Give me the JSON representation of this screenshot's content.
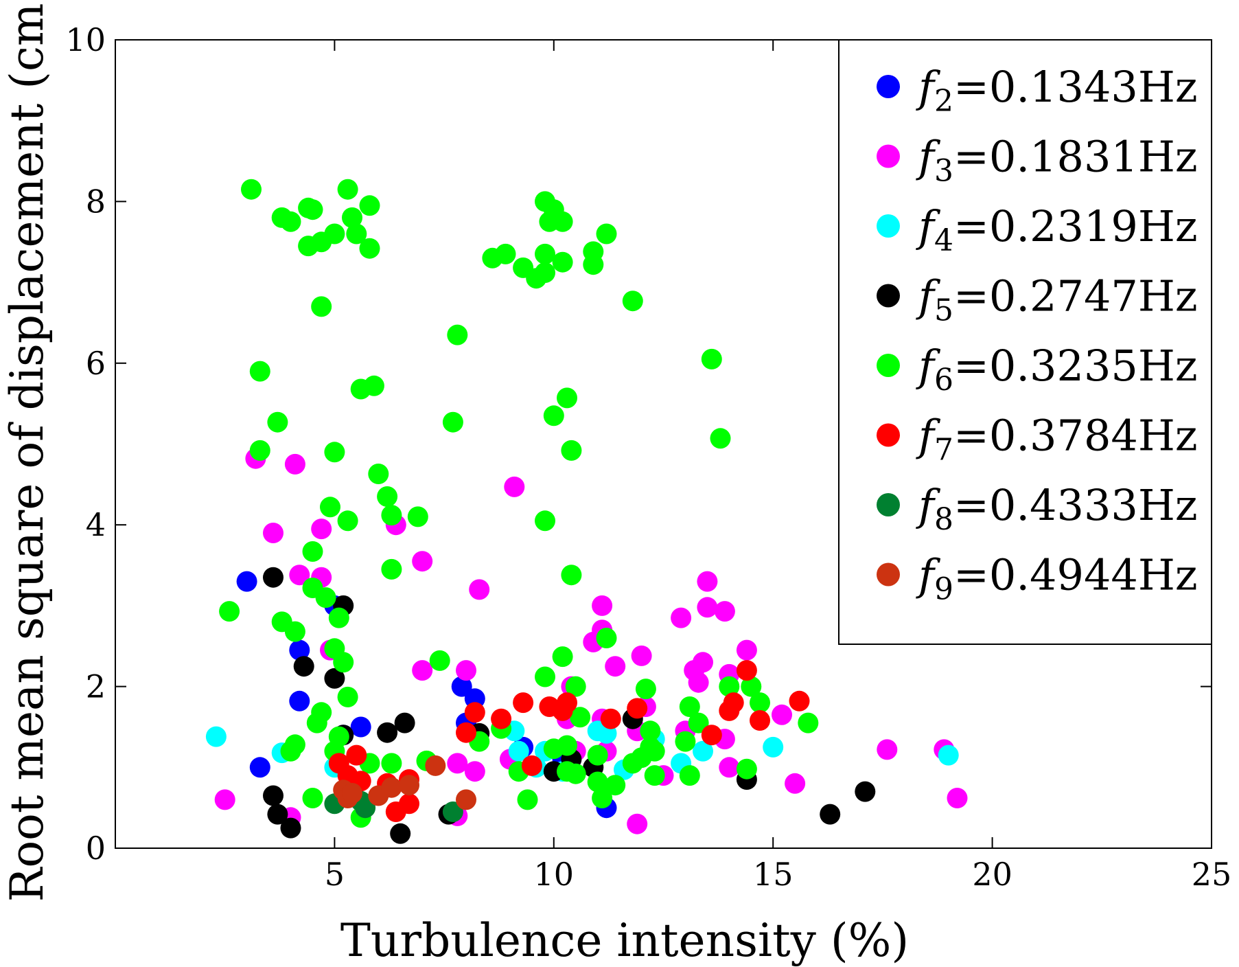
{
  "chart_data": {
    "type": "scatter",
    "xlabel": "Turbulence intensity (%)",
    "ylabel": "Root mean square of displacement (cm)",
    "xlim": [
      0,
      25
    ],
    "ylim": [
      0,
      10
    ],
    "xticks": [
      5,
      10,
      15,
      20,
      25
    ],
    "yticks": [
      0,
      2,
      4,
      6,
      8,
      10
    ],
    "grid": false,
    "legend_position": "top-right",
    "series": [
      {
        "name": "f2=0.1343Hz",
        "symbol": "f",
        "subscript": "2",
        "label_rest": "=0.1343Hz",
        "color": "#0000ff",
        "points": [
          [
            3.0,
            3.3
          ],
          [
            3.3,
            1.0
          ],
          [
            4.2,
            2.45
          ],
          [
            4.2,
            1.82
          ],
          [
            5.0,
            3.0
          ],
          [
            5.6,
            1.5
          ],
          [
            7.9,
            2.0
          ],
          [
            8.0,
            1.55
          ],
          [
            8.2,
            1.85
          ],
          [
            9.3,
            1.25
          ],
          [
            10.2,
            1.1
          ],
          [
            11.2,
            0.5
          ],
          [
            5.2,
            1.4
          ]
        ]
      },
      {
        "name": "f3=0.1831Hz",
        "symbol": "f",
        "subscript": "3",
        "label_rest": "=0.1831Hz",
        "color": "#ff00ff",
        "points": [
          [
            2.5,
            0.6
          ],
          [
            3.2,
            4.82
          ],
          [
            3.6,
            3.9
          ],
          [
            4.1,
            4.75
          ],
          [
            4.2,
            3.38
          ],
          [
            4.7,
            3.95
          ],
          [
            4.7,
            3.35
          ],
          [
            4.9,
            2.45
          ],
          [
            4.0,
            0.38
          ],
          [
            6.4,
            4.0
          ],
          [
            7.0,
            3.55
          ],
          [
            7.0,
            2.2
          ],
          [
            7.8,
            0.4
          ],
          [
            7.8,
            1.05
          ],
          [
            8.0,
            2.2
          ],
          [
            8.2,
            0.95
          ],
          [
            8.3,
            3.2
          ],
          [
            9.1,
            4.47
          ],
          [
            9.0,
            1.1
          ],
          [
            10.3,
            1.6
          ],
          [
            10.4,
            2.0
          ],
          [
            10.5,
            1.2
          ],
          [
            10.9,
            2.55
          ],
          [
            11.1,
            3.0
          ],
          [
            11.1,
            2.7
          ],
          [
            11.1,
            1.6
          ],
          [
            11.2,
            1.2
          ],
          [
            11.4,
            2.25
          ],
          [
            11.9,
            1.45
          ],
          [
            12.0,
            2.38
          ],
          [
            12.1,
            1.75
          ],
          [
            11.9,
            0.3
          ],
          [
            12.5,
            0.9
          ],
          [
            12.9,
            2.85
          ],
          [
            13.0,
            1.45
          ],
          [
            13.2,
            2.2
          ],
          [
            13.3,
            2.05
          ],
          [
            13.4,
            2.3
          ],
          [
            13.5,
            3.3
          ],
          [
            13.5,
            2.98
          ],
          [
            13.9,
            2.93
          ],
          [
            14.0,
            2.15
          ],
          [
            13.9,
            1.35
          ],
          [
            14.0,
            1.0
          ],
          [
            14.4,
            2.45
          ],
          [
            15.2,
            1.65
          ],
          [
            15.5,
            0.8
          ],
          [
            17.6,
            1.22
          ],
          [
            18.9,
            1.22
          ],
          [
            19.2,
            0.62
          ]
        ]
      },
      {
        "name": "f4=0.2319Hz",
        "symbol": "f",
        "subscript": "4",
        "label_rest": "=0.2319Hz",
        "color": "#00ffff",
        "points": [
          [
            2.3,
            1.38
          ],
          [
            3.8,
            1.18
          ],
          [
            5.0,
            1.0
          ],
          [
            9.1,
            1.45
          ],
          [
            9.2,
            1.2
          ],
          [
            9.6,
            1.0
          ],
          [
            9.8,
            1.2
          ],
          [
            10.2,
            0.95
          ],
          [
            11.0,
            1.45
          ],
          [
            11.2,
            1.42
          ],
          [
            11.6,
            0.97
          ],
          [
            12.3,
            1.35
          ],
          [
            12.9,
            1.05
          ],
          [
            13.4,
            1.2
          ],
          [
            15.0,
            1.25
          ],
          [
            19.0,
            1.15
          ]
        ]
      },
      {
        "name": "f5=0.2747Hz",
        "symbol": "f",
        "subscript": "5",
        "label_rest": "=0.2747Hz",
        "color": "#000000",
        "points": [
          [
            3.6,
            0.65
          ],
          [
            3.7,
            0.42
          ],
          [
            4.0,
            0.25
          ],
          [
            3.6,
            3.35
          ],
          [
            4.3,
            2.25
          ],
          [
            5.0,
            2.1
          ],
          [
            5.2,
            3.0
          ],
          [
            5.2,
            1.4
          ],
          [
            6.2,
            1.43
          ],
          [
            6.6,
            1.55
          ],
          [
            6.5,
            0.18
          ],
          [
            7.6,
            0.42
          ],
          [
            8.3,
            1.42
          ],
          [
            10.0,
            0.95
          ],
          [
            10.4,
            1.1
          ],
          [
            10.9,
            1.0
          ],
          [
            11.8,
            1.6
          ],
          [
            14.4,
            0.85
          ],
          [
            16.3,
            0.42
          ],
          [
            17.1,
            0.7
          ]
        ]
      },
      {
        "name": "f6=0.3235Hz",
        "symbol": "f",
        "subscript": "6",
        "label_rest": "=0.3235Hz",
        "color": "#00ff00",
        "points": [
          [
            3.1,
            8.15
          ],
          [
            3.8,
            7.8
          ],
          [
            4.0,
            7.75
          ],
          [
            4.4,
            7.92
          ],
          [
            4.5,
            7.9
          ],
          [
            4.4,
            7.45
          ],
          [
            4.7,
            7.5
          ],
          [
            5.0,
            7.6
          ],
          [
            5.3,
            8.15
          ],
          [
            5.4,
            7.8
          ],
          [
            5.5,
            7.6
          ],
          [
            5.8,
            7.95
          ],
          [
            5.8,
            7.42
          ],
          [
            4.7,
            6.7
          ],
          [
            3.3,
            5.9
          ],
          [
            5.6,
            5.68
          ],
          [
            5.9,
            5.72
          ],
          [
            3.7,
            5.27
          ],
          [
            3.3,
            4.92
          ],
          [
            5.0,
            4.9
          ],
          [
            6.0,
            4.63
          ],
          [
            6.2,
            4.35
          ],
          [
            6.3,
            4.12
          ],
          [
            5.3,
            4.05
          ],
          [
            6.9,
            4.1
          ],
          [
            4.9,
            4.22
          ],
          [
            4.5,
            3.67
          ],
          [
            6.3,
            3.45
          ],
          [
            4.5,
            3.22
          ],
          [
            4.8,
            3.1
          ],
          [
            3.8,
            2.8
          ],
          [
            4.1,
            2.68
          ],
          [
            2.6,
            2.93
          ],
          [
            5.1,
            2.85
          ],
          [
            5.0,
            2.47
          ],
          [
            5.2,
            2.3
          ],
          [
            7.4,
            2.32
          ],
          [
            5.3,
            1.87
          ],
          [
            4.7,
            1.68
          ],
          [
            4.6,
            1.55
          ],
          [
            4.5,
            0.62
          ],
          [
            4.0,
            1.2
          ],
          [
            4.1,
            1.28
          ],
          [
            5.1,
            1.38
          ],
          [
            5.0,
            1.2
          ],
          [
            5.6,
            0.38
          ],
          [
            5.8,
            1.05
          ],
          [
            6.3,
            1.05
          ],
          [
            7.1,
            1.08
          ],
          [
            7.8,
            6.35
          ],
          [
            7.7,
            5.27
          ],
          [
            8.3,
            1.32
          ],
          [
            8.6,
            7.3
          ],
          [
            8.9,
            7.35
          ],
          [
            8.8,
            1.48
          ],
          [
            9.2,
            0.95
          ],
          [
            9.4,
            0.6
          ],
          [
            9.3,
            7.18
          ],
          [
            9.6,
            7.05
          ],
          [
            9.8,
            7.35
          ],
          [
            9.8,
            7.12
          ],
          [
            9.9,
            7.75
          ],
          [
            10.0,
            7.9
          ],
          [
            10.2,
            7.75
          ],
          [
            10.2,
            7.25
          ],
          [
            9.8,
            8.0
          ],
          [
            9.8,
            4.05
          ],
          [
            9.8,
            2.12
          ],
          [
            10.0,
            5.35
          ],
          [
            10.3,
            5.57
          ],
          [
            10.4,
            4.92
          ],
          [
            10.4,
            3.38
          ],
          [
            10.2,
            2.37
          ],
          [
            10.0,
            1.23
          ],
          [
            10.3,
            1.27
          ],
          [
            10.5,
            2.0
          ],
          [
            10.6,
            1.62
          ],
          [
            10.3,
            0.95
          ],
          [
            10.5,
            0.92
          ],
          [
            10.9,
            7.38
          ],
          [
            10.9,
            7.22
          ],
          [
            11.2,
            7.6
          ],
          [
            11.0,
            1.15
          ],
          [
            11.0,
            0.82
          ],
          [
            11.1,
            0.62
          ],
          [
            11.2,
            2.6
          ],
          [
            11.4,
            0.78
          ],
          [
            11.8,
            6.77
          ],
          [
            11.8,
            1.05
          ],
          [
            12.0,
            1.12
          ],
          [
            12.1,
            1.97
          ],
          [
            12.2,
            1.45
          ],
          [
            12.2,
            1.25
          ],
          [
            12.3,
            1.2
          ],
          [
            12.3,
            0.9
          ],
          [
            13.0,
            1.32
          ],
          [
            13.1,
            1.75
          ],
          [
            13.1,
            0.9
          ],
          [
            13.3,
            1.55
          ],
          [
            13.6,
            6.05
          ],
          [
            13.8,
            5.07
          ],
          [
            14.0,
            2.0
          ],
          [
            14.4,
            0.98
          ],
          [
            14.5,
            2.0
          ],
          [
            14.7,
            1.8
          ],
          [
            15.8,
            1.55
          ]
        ]
      },
      {
        "name": "f7=0.3784Hz",
        "symbol": "f",
        "subscript": "7",
        "label_rest": "=0.3784Hz",
        "color": "#ff0000",
        "points": [
          [
            5.1,
            1.05
          ],
          [
            5.3,
            0.9
          ],
          [
            5.5,
            1.15
          ],
          [
            5.6,
            0.83
          ],
          [
            6.2,
            0.8
          ],
          [
            6.4,
            0.45
          ],
          [
            6.7,
            0.55
          ],
          [
            6.7,
            0.85
          ],
          [
            8.0,
            1.43
          ],
          [
            8.2,
            1.68
          ],
          [
            8.8,
            1.6
          ],
          [
            9.3,
            1.8
          ],
          [
            9.5,
            1.02
          ],
          [
            9.9,
            1.75
          ],
          [
            10.2,
            1.7
          ],
          [
            10.3,
            1.8
          ],
          [
            11.3,
            1.6
          ],
          [
            11.9,
            1.73
          ],
          [
            13.6,
            1.4
          ],
          [
            14.0,
            1.7
          ],
          [
            14.1,
            1.8
          ],
          [
            14.4,
            2.2
          ],
          [
            14.7,
            1.58
          ],
          [
            15.6,
            1.82
          ]
        ]
      },
      {
        "name": "f8=0.4333Hz",
        "symbol": "f",
        "subscript": "8",
        "label_rest": "=0.4333Hz",
        "color": "#008030",
        "points": [
          [
            5.0,
            0.55
          ],
          [
            5.6,
            0.58
          ],
          [
            5.7,
            0.5
          ],
          [
            7.7,
            0.45
          ]
        ]
      },
      {
        "name": "f9=0.4944Hz",
        "symbol": "f",
        "subscript": "9",
        "label_rest": "=0.4944Hz",
        "color": "#cc3311",
        "points": [
          [
            5.2,
            0.72
          ],
          [
            5.3,
            0.62
          ],
          [
            5.4,
            0.68
          ],
          [
            6.0,
            0.65
          ],
          [
            6.3,
            0.75
          ],
          [
            6.7,
            0.78
          ],
          [
            7.3,
            1.02
          ],
          [
            8.0,
            0.6
          ]
        ]
      }
    ]
  }
}
